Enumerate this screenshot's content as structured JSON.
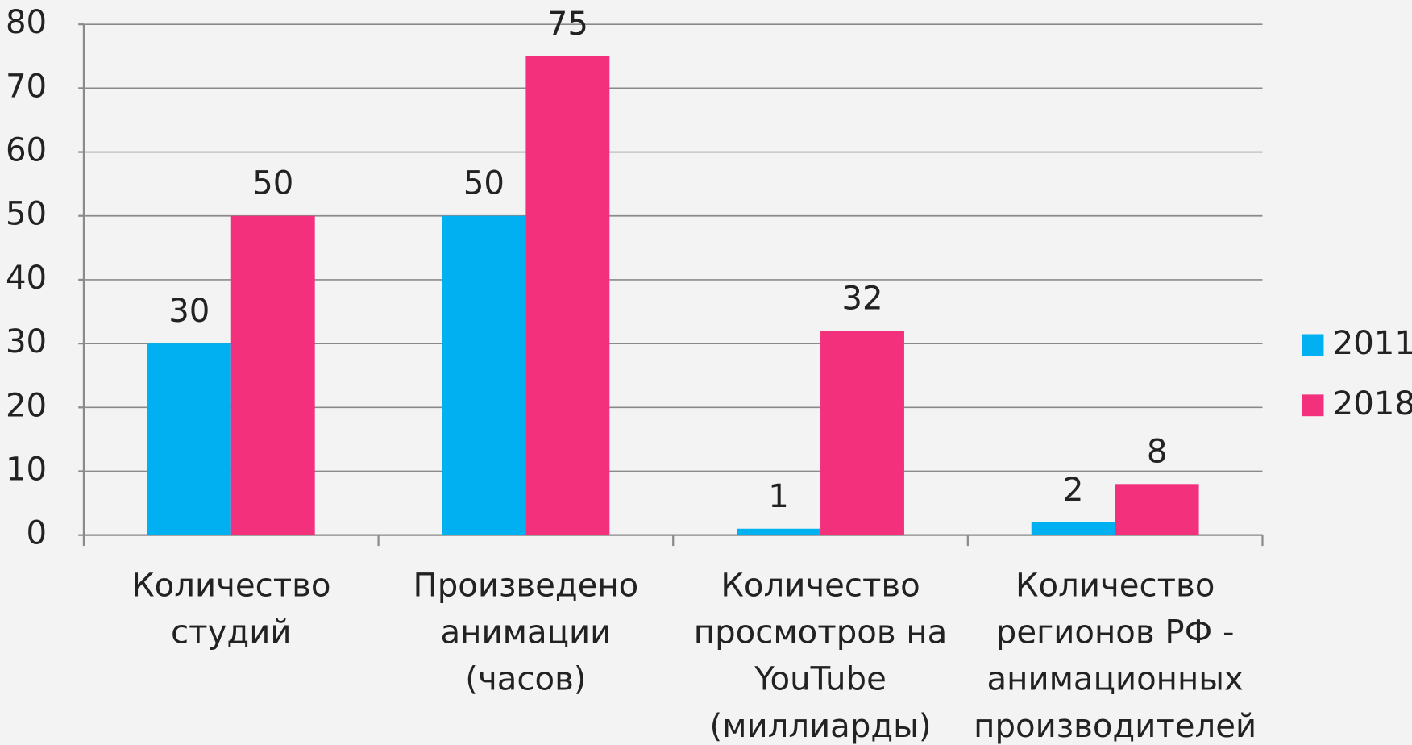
{
  "chart_data": {
    "type": "bar",
    "categories": [
      "Количество студий",
      "Произведено анимации (часов)",
      "Количество просмотров на YouTube (миллиарды)",
      "Количество регионов РФ - анимационных производителей"
    ],
    "series": [
      {
        "name": "2011",
        "color": "#00b0f0",
        "values": [
          30,
          50,
          1,
          2
        ]
      },
      {
        "name": "2018",
        "color": "#f2307b",
        "values": [
          50,
          75,
          32,
          8
        ]
      }
    ],
    "ylim": [
      0,
      80
    ],
    "yticks": [
      0,
      10,
      20,
      30,
      40,
      50,
      60,
      70,
      80
    ],
    "grid": true,
    "legend": "right"
  }
}
